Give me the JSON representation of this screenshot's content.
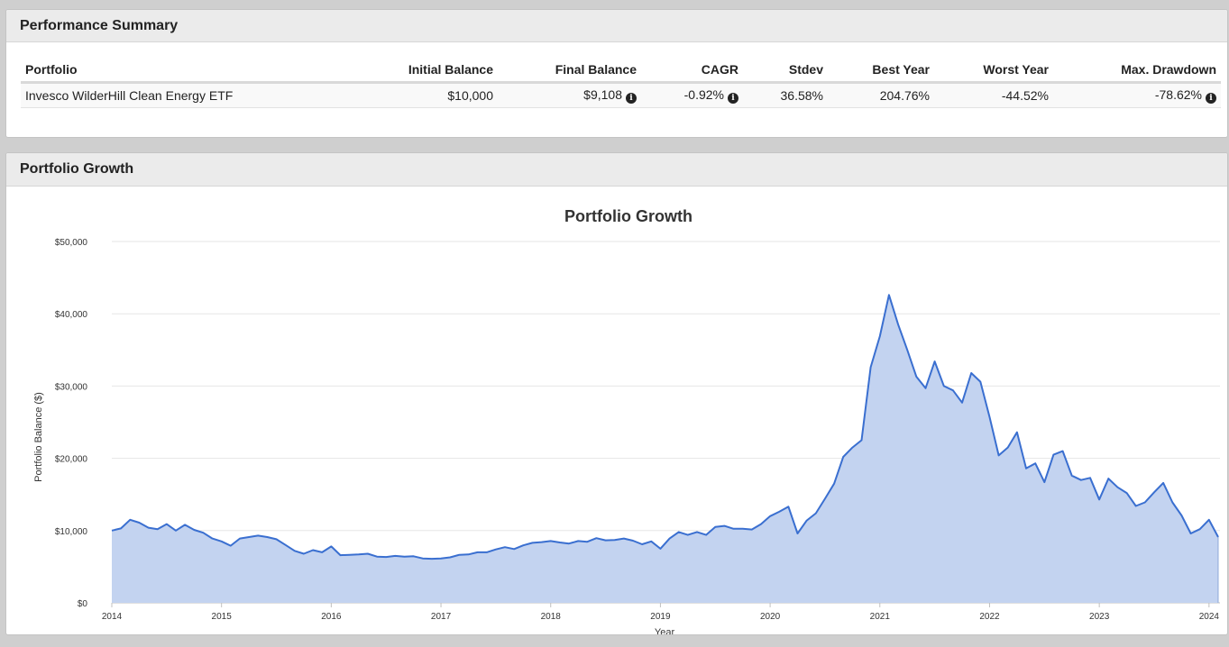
{
  "summary": {
    "title": "Performance Summary",
    "columns": [
      "Portfolio",
      "Initial Balance",
      "Final Balance",
      "CAGR",
      "Stdev",
      "Best Year",
      "Worst Year",
      "Max. Drawdown"
    ],
    "row": {
      "portfolio": "Invesco WilderHill Clean Energy ETF",
      "initial_balance": "$10,000",
      "final_balance": "$9,108",
      "cagr": "-0.92%",
      "stdev": "36.58%",
      "best_year": "204.76%",
      "worst_year": "-44.52%",
      "max_drawdown": "-78.62%"
    },
    "info_icon": "info-circle-icon"
  },
  "growth": {
    "title": "Portfolio Growth"
  },
  "chart_data": {
    "type": "area",
    "title": "Portfolio Growth",
    "xlabel": "Year",
    "ylabel": "Portfolio Balance ($)",
    "ylim": [
      0,
      50000
    ],
    "xlim": [
      2014.0,
      2024.1
    ],
    "x_ticks": [
      "2014",
      "2015",
      "2016",
      "2017",
      "2018",
      "2019",
      "2020",
      "2021",
      "2022",
      "2023",
      "2024"
    ],
    "y_ticks": [
      "$0",
      "$10,000",
      "$20,000",
      "$30,000",
      "$40,000",
      "$50,000"
    ],
    "grid": true,
    "line_color": "#3a6fd0",
    "fill_color": "#c3d3f0",
    "series": [
      {
        "x": [
          "2014-01",
          "2014-02",
          "2014-03",
          "2014-04",
          "2014-05",
          "2014-06",
          "2014-07",
          "2014-08",
          "2014-09",
          "2014-10",
          "2014-11",
          "2014-12",
          "2015-01",
          "2015-02",
          "2015-03",
          "2015-04",
          "2015-05",
          "2015-06",
          "2015-07",
          "2015-08",
          "2015-09",
          "2015-10",
          "2015-11",
          "2015-12",
          "2016-01",
          "2016-02",
          "2016-03",
          "2016-04",
          "2016-05",
          "2016-06",
          "2016-07",
          "2016-08",
          "2016-09",
          "2016-10",
          "2016-11",
          "2016-12",
          "2017-01",
          "2017-02",
          "2017-03",
          "2017-04",
          "2017-05",
          "2017-06",
          "2017-07",
          "2017-08",
          "2017-09",
          "2017-10",
          "2017-11",
          "2017-12",
          "2018-01",
          "2018-02",
          "2018-03",
          "2018-04",
          "2018-05",
          "2018-06",
          "2018-07",
          "2018-08",
          "2018-09",
          "2018-10",
          "2018-11",
          "2018-12",
          "2019-01",
          "2019-02",
          "2019-03",
          "2019-04",
          "2019-05",
          "2019-06",
          "2019-07",
          "2019-08",
          "2019-09",
          "2019-10",
          "2019-11",
          "2019-12",
          "2020-01",
          "2020-02",
          "2020-03",
          "2020-04",
          "2020-05",
          "2020-06",
          "2020-07",
          "2020-08",
          "2020-09",
          "2020-10",
          "2020-11",
          "2020-12",
          "2021-01",
          "2021-02",
          "2021-03",
          "2021-04",
          "2021-05",
          "2021-06",
          "2021-07",
          "2021-08",
          "2021-09",
          "2021-10",
          "2021-11",
          "2021-12",
          "2022-01",
          "2022-02",
          "2022-03",
          "2022-04",
          "2022-05",
          "2022-06",
          "2022-07",
          "2022-08",
          "2022-09",
          "2022-10",
          "2022-11",
          "2022-12",
          "2023-01",
          "2023-02",
          "2023-03",
          "2023-04",
          "2023-05",
          "2023-06",
          "2023-07",
          "2023-08",
          "2023-09",
          "2023-10",
          "2023-11",
          "2023-12",
          "2024-01",
          "2024-02"
        ],
        "values": [
          10000,
          10300,
          11500,
          11100,
          10400,
          10200,
          10900,
          10000,
          10800,
          10100,
          9700,
          8900,
          8500,
          7900,
          8900,
          9100,
          9300,
          9100,
          8800,
          8000,
          7200,
          6800,
          7300,
          7000,
          7800,
          6600,
          6650,
          6700,
          6800,
          6400,
          6350,
          6500,
          6400,
          6450,
          6150,
          6100,
          6150,
          6300,
          6650,
          6700,
          7000,
          7000,
          7400,
          7700,
          7450,
          7950,
          8300,
          8400,
          8550,
          8350,
          8200,
          8550,
          8450,
          8950,
          8650,
          8700,
          8900,
          8600,
          8100,
          8500,
          7500,
          8900,
          9800,
          9400,
          9800,
          9400,
          10500,
          10650,
          10250,
          10250,
          10150,
          10900,
          12000,
          12600,
          13300,
          9600,
          11400,
          12400,
          14400,
          16500,
          20200,
          21500,
          22500,
          32600,
          36900,
          42600,
          38500,
          35000,
          31300,
          29700,
          33400,
          30000,
          29400,
          27700,
          31800,
          30600,
          25700,
          20400,
          21500,
          23600,
          18600,
          19300,
          16700,
          20500,
          21000,
          17600,
          17000,
          17300,
          14300,
          17200,
          16000,
          15200,
          13400,
          13900,
          15300,
          16600,
          13900,
          12100,
          9600,
          10200,
          11500,
          9108
        ]
      }
    ]
  }
}
